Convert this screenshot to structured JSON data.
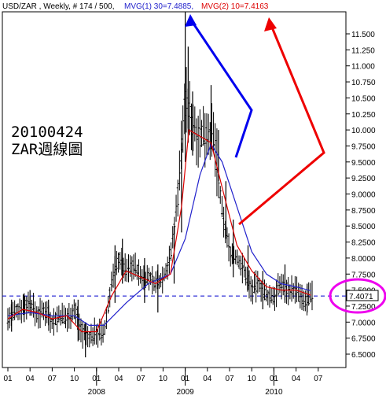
{
  "header": {
    "symbol": "USD/ZAR , Weekly, # 174 / 500,",
    "mvg1": "MVG(1) 30=7.4885,",
    "mvg2": "MVG(2) 10=7.4163"
  },
  "annotation": {
    "line1": "20100424",
    "line2": "ZAR週線圖"
  },
  "last_price_label": "7.4071",
  "colors": {
    "mvg1": "#2222cc",
    "mvg2": "#dd0000",
    "arrow_blue": "#0000ee",
    "arrow_red": "#ee0000",
    "circle": "#ee00ee",
    "dashed": "#0000cc"
  },
  "chart_data": {
    "type": "line",
    "title": "USD/ZAR , Weekly",
    "xlabel": "",
    "ylabel": "",
    "ylim": [
      6.25,
      11.85
    ],
    "y_ticks": [
      6.5,
      6.75,
      7.0,
      7.25,
      7.5,
      7.75,
      8.0,
      8.25,
      8.5,
      8.75,
      9.0,
      9.25,
      9.5,
      9.75,
      10.0,
      10.25,
      10.5,
      10.75,
      11.0,
      11.25,
      11.5
    ],
    "y_tick_labels": [
      "6.5000",
      "6.7500",
      "7.0000",
      "7.2500",
      "7.5000",
      "7.7500",
      "8.0000",
      "8.2500",
      "8.5000",
      "8.7500",
      "9.0000",
      "9.2500",
      "9.5000",
      "9.7500",
      "10.000",
      "10.250",
      "10.500",
      "10.750",
      "11.000",
      "11.250",
      "11.500"
    ],
    "x_ticks": [
      "01",
      "04",
      "07",
      "10",
      "01",
      "04",
      "07",
      "10",
      "01",
      "04",
      "07",
      "10",
      "01",
      "04",
      "07"
    ],
    "year_labels": [
      {
        "label": "2008",
        "month_index": 12
      },
      {
        "label": "2009",
        "month_index": 24
      },
      {
        "label": "2010",
        "month_index": 36
      }
    ],
    "last_price": 7.4071,
    "price_points": [
      {
        "m": 0,
        "v": 7.05
      },
      {
        "m": 1,
        "v": 7.15
      },
      {
        "m": 2,
        "v": 7.25
      },
      {
        "m": 3,
        "v": 7.3
      },
      {
        "m": 4,
        "v": 7.1
      },
      {
        "m": 5,
        "v": 7.2
      },
      {
        "m": 6,
        "v": 7.0
      },
      {
        "m": 7,
        "v": 7.1
      },
      {
        "m": 8,
        "v": 7.05
      },
      {
        "m": 9,
        "v": 7.2
      },
      {
        "m": 10,
        "v": 6.85
      },
      {
        "m": 11,
        "v": 6.75
      },
      {
        "m": 12,
        "v": 6.85
      },
      {
        "m": 13,
        "v": 6.8
      },
      {
        "m": 14,
        "v": 7.6
      },
      {
        "m": 15,
        "v": 8.0
      },
      {
        "m": 16,
        "v": 7.8
      },
      {
        "m": 17,
        "v": 7.9
      },
      {
        "m": 18,
        "v": 7.7
      },
      {
        "m": 19,
        "v": 7.7
      },
      {
        "m": 20,
        "v": 7.6
      },
      {
        "m": 21,
        "v": 7.7
      },
      {
        "m": 22,
        "v": 8.0
      },
      {
        "m": 23,
        "v": 9.0
      },
      {
        "m": 24,
        "v": 10.5
      },
      {
        "m": 25,
        "v": 10.1
      },
      {
        "m": 26,
        "v": 9.9
      },
      {
        "m": 27,
        "v": 10.0
      },
      {
        "m": 28,
        "v": 9.8
      },
      {
        "m": 29,
        "v": 8.7
      },
      {
        "m": 30,
        "v": 8.1
      },
      {
        "m": 31,
        "v": 8.0
      },
      {
        "m": 32,
        "v": 7.8
      },
      {
        "m": 33,
        "v": 7.5
      },
      {
        "m": 34,
        "v": 7.6
      },
      {
        "m": 35,
        "v": 7.4
      },
      {
        "m": 36,
        "v": 7.4
      },
      {
        "m": 37,
        "v": 7.6
      },
      {
        "m": 38,
        "v": 7.5
      },
      {
        "m": 39,
        "v": 7.5
      },
      {
        "m": 40,
        "v": 7.3
      },
      {
        "m": 41,
        "v": 7.4
      }
    ],
    "high_low_bars": [
      {
        "m": 0.5,
        "hi": 7.35,
        "lo": 6.85
      },
      {
        "m": 2.2,
        "hi": 7.45,
        "lo": 7.0
      },
      {
        "m": 3.0,
        "hi": 7.5,
        "lo": 7.1
      },
      {
        "m": 5.5,
        "hi": 7.35,
        "lo": 6.95
      },
      {
        "m": 9.5,
        "hi": 7.35,
        "lo": 6.7
      },
      {
        "m": 10.5,
        "hi": 7.0,
        "lo": 6.45
      },
      {
        "m": 14.5,
        "hi": 8.2,
        "lo": 7.3
      },
      {
        "m": 15.5,
        "hi": 8.3,
        "lo": 7.6
      },
      {
        "m": 18.5,
        "hi": 8.0,
        "lo": 7.3
      },
      {
        "m": 20.3,
        "hi": 7.9,
        "lo": 7.15
      },
      {
        "m": 22.5,
        "hi": 8.5,
        "lo": 7.6
      },
      {
        "m": 23.5,
        "hi": 9.8,
        "lo": 8.4
      },
      {
        "m": 24.0,
        "hi": 11.85,
        "lo": 9.5
      },
      {
        "m": 24.4,
        "hi": 11.3,
        "lo": 9.8
      },
      {
        "m": 25.0,
        "hi": 10.6,
        "lo": 9.6
      },
      {
        "m": 27.5,
        "hi": 10.7,
        "lo": 9.7
      },
      {
        "m": 28.5,
        "hi": 10.0,
        "lo": 9.2
      },
      {
        "m": 29.5,
        "hi": 9.2,
        "lo": 8.3
      },
      {
        "m": 30.5,
        "hi": 8.6,
        "lo": 7.7
      },
      {
        "m": 32.5,
        "hi": 8.2,
        "lo": 7.5
      },
      {
        "m": 34.5,
        "hi": 7.8,
        "lo": 7.2
      },
      {
        "m": 37.5,
        "hi": 7.9,
        "lo": 7.3
      },
      {
        "m": 40.5,
        "hi": 7.6,
        "lo": 7.15
      }
    ],
    "series": [
      {
        "name": "MVG(1) 30",
        "points": [
          {
            "m": 0,
            "v": 7.1
          },
          {
            "m": 3,
            "v": 7.15
          },
          {
            "m": 6,
            "v": 7.1
          },
          {
            "m": 9,
            "v": 7.1
          },
          {
            "m": 11,
            "v": 6.95
          },
          {
            "m": 13,
            "v": 6.95
          },
          {
            "m": 16,
            "v": 7.3
          },
          {
            "m": 19,
            "v": 7.6
          },
          {
            "m": 22,
            "v": 7.75
          },
          {
            "m": 24,
            "v": 8.3
          },
          {
            "m": 26,
            "v": 9.3
          },
          {
            "m": 27.5,
            "v": 9.78
          },
          {
            "m": 29,
            "v": 9.5
          },
          {
            "m": 31,
            "v": 8.8
          },
          {
            "m": 33,
            "v": 8.1
          },
          {
            "m": 35,
            "v": 7.75
          },
          {
            "m": 37,
            "v": 7.6
          },
          {
            "m": 39,
            "v": 7.55
          },
          {
            "m": 41,
            "v": 7.49
          }
        ]
      },
      {
        "name": "MVG(2) 10",
        "points": [
          {
            "m": 0,
            "v": 7.05
          },
          {
            "m": 2,
            "v": 7.2
          },
          {
            "m": 4,
            "v": 7.15
          },
          {
            "m": 6,
            "v": 7.05
          },
          {
            "m": 8,
            "v": 7.1
          },
          {
            "m": 10,
            "v": 6.85
          },
          {
            "m": 12,
            "v": 6.85
          },
          {
            "m": 14,
            "v": 7.4
          },
          {
            "m": 16,
            "v": 7.8
          },
          {
            "m": 18,
            "v": 7.7
          },
          {
            "m": 20,
            "v": 7.6
          },
          {
            "m": 22,
            "v": 7.75
          },
          {
            "m": 23.5,
            "v": 8.8
          },
          {
            "m": 24.5,
            "v": 10.0
          },
          {
            "m": 26,
            "v": 9.9
          },
          {
            "m": 27.5,
            "v": 9.8
          },
          {
            "m": 29,
            "v": 9.1
          },
          {
            "m": 31,
            "v": 8.2
          },
          {
            "m": 33,
            "v": 7.8
          },
          {
            "m": 35,
            "v": 7.55
          },
          {
            "m": 37,
            "v": 7.5
          },
          {
            "m": 39,
            "v": 7.5
          },
          {
            "m": 41,
            "v": 7.42
          }
        ]
      }
    ],
    "grid": false,
    "legend": "top-left header"
  }
}
